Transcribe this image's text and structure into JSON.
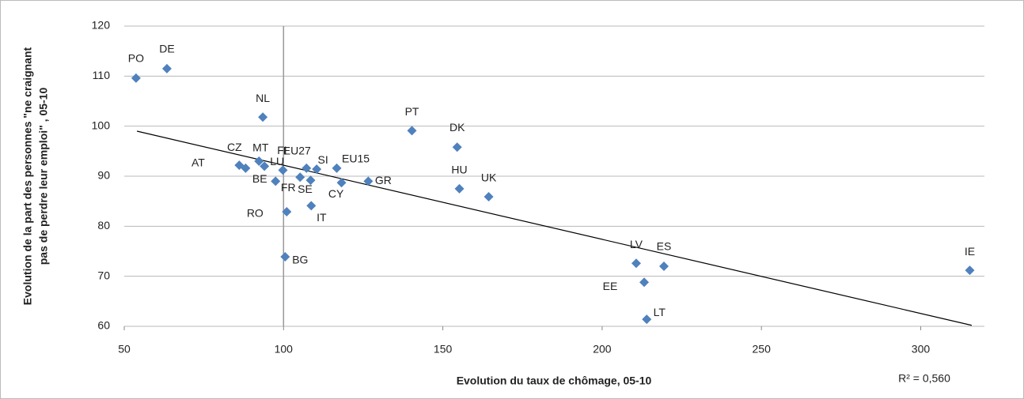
{
  "chart_data": {
    "type": "scatter",
    "x_label": "Evolution du taux de chômage, 05-10",
    "y_label": [
      "Evolution de la part des personnes \"ne craignant",
      "pas de perdre leur emploi\" , 05-10"
    ],
    "annotation": "R² = 0,560",
    "xlim": [
      50,
      320
    ],
    "ylim": [
      60,
      120
    ],
    "xticks": [
      50,
      100,
      150,
      200,
      250,
      300
    ],
    "yticks": [
      60,
      70,
      80,
      90,
      100,
      110,
      120
    ],
    "grid": true,
    "vline": 100,
    "color": "#4f81bd",
    "labels": [
      "PO",
      "DE",
      "NL",
      "PT",
      "DK",
      "CZ",
      "AT",
      "MT",
      "LU",
      "FI",
      "EU27",
      "SI",
      "EU15",
      "BE",
      "FR",
      "SE",
      "CY",
      "GR",
      "HU",
      "UK",
      "RO",
      "IT",
      "BG",
      "LV",
      "ES",
      "EE",
      "LT",
      "IE"
    ],
    "x": [
      53.7,
      63.4,
      93.5,
      140.3,
      154.5,
      86.1,
      88.1,
      92.3,
      94.0,
      99.8,
      107.2,
      110.4,
      116.7,
      97.5,
      105.2,
      108.5,
      118.2,
      126.6,
      155.2,
      164.4,
      101.0,
      108.7,
      100.5,
      210.7,
      219.4,
      213.2,
      214.0,
      315.4
    ],
    "y": [
      109.6,
      111.5,
      101.8,
      99.1,
      95.8,
      92.2,
      91.6,
      93.0,
      92.0,
      91.2,
      91.6,
      91.4,
      91.6,
      89.0,
      89.8,
      89.2,
      88.7,
      89.0,
      87.5,
      85.9,
      82.9,
      84.1,
      73.9,
      72.6,
      72.0,
      68.8,
      61.4,
      71.2
    ],
    "trend_line": {
      "x": [
        54,
        316
      ],
      "y": [
        99,
        60.2
      ]
    }
  }
}
